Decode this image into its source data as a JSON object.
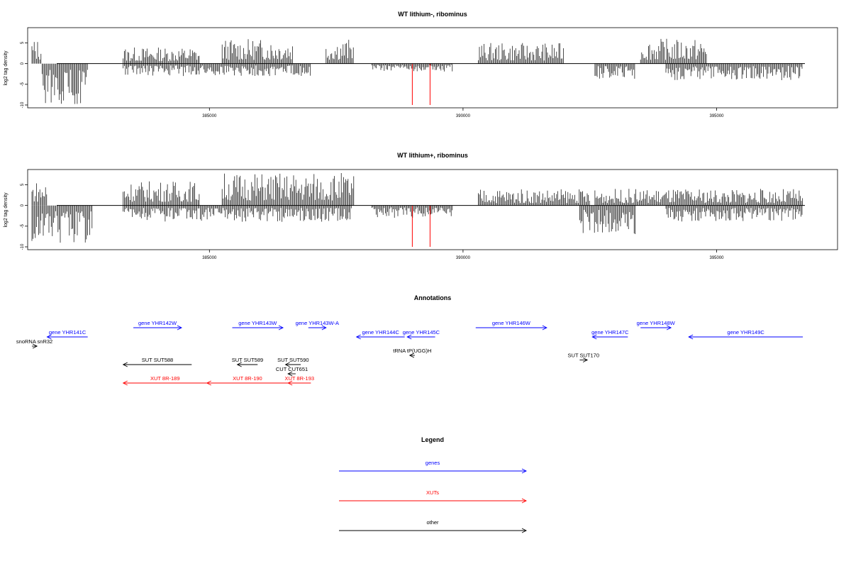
{
  "colors": {
    "gene": "#0000ff",
    "xut": "#ff0000",
    "other": "#000000",
    "highlight": "#ff0000",
    "bar": "#000000"
  },
  "chart_data": [
    {
      "type": "bar",
      "title": "WT lithium-, ribominus",
      "ylabel": "log2 tag density",
      "xlim": [
        381500,
        397300
      ],
      "ylim": [
        -10,
        8
      ],
      "x_ticks": [
        385000,
        390000,
        395000
      ],
      "x_tick_labels": [
        "385000",
        "390000",
        "395000"
      ],
      "y_ticks": [
        5,
        0,
        -5,
        -10
      ],
      "y_tick_labels": [
        "5",
        "0",
        "-5",
        "-10"
      ],
      "grid": false,
      "positive_segments": [
        {
          "x_start": 381500,
          "x_end": 381700,
          "max": 6
        },
        {
          "x_start": 383300,
          "x_end": 384800,
          "max": 4
        },
        {
          "x_start": 385250,
          "x_end": 386650,
          "max": 6
        },
        {
          "x_start": 387300,
          "x_end": 387850,
          "max": 6
        },
        {
          "x_start": 390300,
          "x_end": 392000,
          "max": 5
        },
        {
          "x_start": 393500,
          "x_end": 394800,
          "max": 6
        }
      ],
      "negative_segments": [
        {
          "x_start": 381700,
          "x_end": 382600,
          "min": -10
        },
        {
          "x_start": 383300,
          "x_end": 387000,
          "min": -3
        },
        {
          "x_start": 388200,
          "x_end": 389800,
          "min": -2
        },
        {
          "x_start": 392600,
          "x_end": 393400,
          "min": -4
        },
        {
          "x_start": 394000,
          "x_end": 396700,
          "min": -4
        }
      ],
      "highlight_bars": [
        {
          "x": 389000,
          "value": -10
        },
        {
          "x": 389350,
          "value": -10
        }
      ]
    },
    {
      "type": "bar",
      "title": "WT lithium+, ribominus",
      "ylabel": "log2 tag density",
      "xlim": [
        381500,
        397300
      ],
      "ylim": [
        -10,
        8
      ],
      "x_ticks": [
        385000,
        390000,
        395000
      ],
      "x_tick_labels": [
        "385000",
        "390000",
        "395000"
      ],
      "y_ticks": [
        5,
        0,
        -5,
        -10
      ],
      "y_tick_labels": [
        "5",
        "0",
        "-5",
        "-10"
      ],
      "grid": false,
      "positive_segments": [
        {
          "x_start": 381500,
          "x_end": 381800,
          "max": 6
        },
        {
          "x_start": 383300,
          "x_end": 384800,
          "max": 6
        },
        {
          "x_start": 385250,
          "x_end": 387850,
          "max": 8
        },
        {
          "x_start": 390300,
          "x_end": 392500,
          "max": 4
        },
        {
          "x_start": 392600,
          "x_end": 396700,
          "max": 4
        }
      ],
      "negative_segments": [
        {
          "x_start": 381500,
          "x_end": 382700,
          "min": -9
        },
        {
          "x_start": 383300,
          "x_end": 387800,
          "min": -4
        },
        {
          "x_start": 388200,
          "x_end": 389800,
          "min": -3
        },
        {
          "x_start": 392300,
          "x_end": 393400,
          "min": -7
        },
        {
          "x_start": 394000,
          "x_end": 396700,
          "min": -4
        }
      ],
      "highlight_bars": [
        {
          "x": 389000,
          "value": -10
        },
        {
          "x": 389350,
          "value": -10
        }
      ]
    }
  ],
  "annotations": {
    "title": "Annotations",
    "items": [
      {
        "label": "gene YHR141C",
        "x_start": 381800,
        "x_end": 382600,
        "strand": "-",
        "kind": "gene",
        "row": 1
      },
      {
        "label": "snoRNA snR32",
        "x_start": 381500,
        "x_end": 381600,
        "strand": "+",
        "kind": "other",
        "row": 2
      },
      {
        "label": "gene YHR142W",
        "x_start": 383500,
        "x_end": 384450,
        "strand": "+",
        "kind": "gene",
        "row": 0
      },
      {
        "label": "gene YHR143W",
        "x_start": 385450,
        "x_end": 386450,
        "strand": "+",
        "kind": "gene",
        "row": 0
      },
      {
        "label": "gene YHR143W-A",
        "x_start": 386950,
        "x_end": 387300,
        "strand": "+",
        "kind": "gene",
        "row": 0
      },
      {
        "label": "gene YHR144C",
        "x_start": 387900,
        "x_end": 388850,
        "strand": "-",
        "kind": "gene",
        "row": 1
      },
      {
        "label": "gene YHR145C",
        "x_start": 388900,
        "x_end": 389450,
        "strand": "-",
        "kind": "gene",
        "row": 1
      },
      {
        "label": "tRNA tP(UGG)H",
        "x_start": 388950,
        "x_end": 389050,
        "strand": "-",
        "kind": "other",
        "row": 3
      },
      {
        "label": "gene YHR146W",
        "x_start": 390250,
        "x_end": 391650,
        "strand": "+",
        "kind": "gene",
        "row": 0
      },
      {
        "label": "gene YHR147C",
        "x_start": 392550,
        "x_end": 393250,
        "strand": "-",
        "kind": "gene",
        "row": 1
      },
      {
        "label": "gene YHR148W",
        "x_start": 393500,
        "x_end": 394100,
        "strand": "+",
        "kind": "gene",
        "row": 0
      },
      {
        "label": "gene YHR149C",
        "x_start": 394450,
        "x_end": 396700,
        "strand": "-",
        "kind": "gene",
        "row": 1
      },
      {
        "label": "SUT SUT588",
        "x_start": 383300,
        "x_end": 384650,
        "strand": "-",
        "kind": "other",
        "row": 4
      },
      {
        "label": "SUT SUT589",
        "x_start": 385550,
        "x_end": 385950,
        "strand": "-",
        "kind": "other",
        "row": 4
      },
      {
        "label": "SUT SUT590",
        "x_start": 386500,
        "x_end": 386800,
        "strand": "-",
        "kind": "other",
        "row": 4
      },
      {
        "label": "CUT CUT651",
        "x_start": 386550,
        "x_end": 386700,
        "strand": "-",
        "kind": "other",
        "row": 5
      },
      {
        "label": "SUT SUT170",
        "x_start": 392300,
        "x_end": 392450,
        "strand": "+",
        "kind": "other",
        "row": 3.5
      },
      {
        "label": "XUT 8R-189",
        "x_start": 383300,
        "x_end": 384950,
        "strand": "-",
        "kind": "xut",
        "row": 6
      },
      {
        "label": "XUT 8R-190",
        "x_start": 384950,
        "x_end": 386550,
        "strand": "-",
        "kind": "xut",
        "row": 6
      },
      {
        "label": "XUT 8R-193",
        "x_start": 386550,
        "x_end": 387000,
        "strand": "-",
        "kind": "xut",
        "row": 6
      }
    ]
  },
  "legend": {
    "title": "Legend",
    "items": [
      {
        "label": "genes",
        "kind": "gene"
      },
      {
        "label": "XUTs",
        "kind": "xut"
      },
      {
        "label": "other",
        "kind": "other"
      }
    ]
  }
}
